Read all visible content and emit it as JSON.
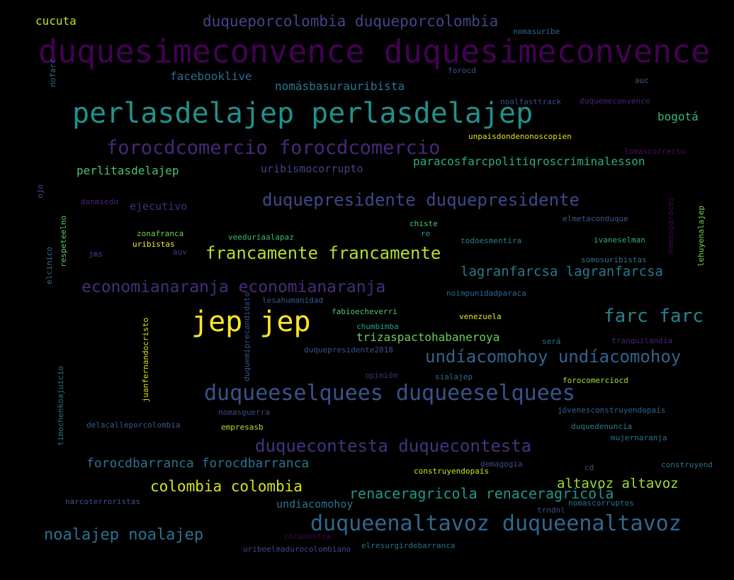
{
  "words": [
    {
      "text": "duquesimeconvence duquesimeconvence",
      "color": "#440154"
    },
    {
      "text": "perlasdelajep perlasdelajep",
      "color": "#21918c"
    },
    {
      "text": "jep jep",
      "color": "#fde725"
    },
    {
      "text": "duqueeselquees duqueeselquees",
      "color": "#3b528b"
    },
    {
      "text": "duqueenaltavoz duqueenaltavoz",
      "color": "#31688e"
    },
    {
      "text": "forocdcomercio forocdcomercio",
      "color": "#482878"
    },
    {
      "text": "duquepresidente duquepresidente",
      "color": "#3e4989"
    },
    {
      "text": "francamente francamente",
      "color": "#b5de2b"
    },
    {
      "text": "economianaranja economianaranja",
      "color": "#472d7b"
    },
    {
      "text": "farc farc",
      "color": "#26828e"
    },
    {
      "text": "undíacomohoy undíacomohoy",
      "color": "#33638d"
    },
    {
      "text": "duquecontesta duquecontesta",
      "color": "#46327e"
    },
    {
      "text": "duqueporcolombia duqueporcolombia",
      "color": "#404688"
    },
    {
      "text": "noalajep noalajep",
      "color": "#2d708e"
    },
    {
      "text": "colombia colombia",
      "color": "#d8e219"
    },
    {
      "text": "renaceragricola renaceragricola",
      "color": "#1f988b"
    },
    {
      "text": "lagranfarcsa lagranfarcsa",
      "color": "#2a788e"
    },
    {
      "text": "forocdbarranca forocdbarranca",
      "color": "#2c728e"
    },
    {
      "text": "altavoz altavoz",
      "color": "#a0da39"
    },
    {
      "text": "trizaspactohabaneroya",
      "color": "#6ccd5a"
    },
    {
      "text": "facebooklive",
      "color": "#31688e"
    },
    {
      "text": "nomásbasurauribista",
      "color": "#2a788e"
    },
    {
      "text": "paracosfarcpolitiqroscriminalesson",
      "color": "#29af7f"
    },
    {
      "text": "perlitasdelajep",
      "color": "#4ac16d"
    },
    {
      "text": "uribismocorrupto",
      "color": "#414487"
    },
    {
      "text": "bogotá",
      "color": "#35b779"
    },
    {
      "text": "cucuta",
      "color": "#c2df23"
    },
    {
      "text": "ejecutivo",
      "color": "#472f7d"
    },
    {
      "text": "undiacomohoy",
      "color": "#2c728e"
    },
    {
      "text": "nomasuribe",
      "color": "#33638d"
    },
    {
      "text": "forocd",
      "color": "#3b528b"
    },
    {
      "text": "auc",
      "color": "#355f8d"
    },
    {
      "text": "noalfasttrack",
      "color": "#3e4c8a"
    },
    {
      "text": "duquemeconvence",
      "color": "#482475"
    },
    {
      "text": "unpaisdondenonoscopien",
      "color": "#dde318"
    },
    {
      "text": "lomascorrecto",
      "color": "#471063"
    },
    {
      "text": "nofarc",
      "color": "#2c728e"
    },
    {
      "text": "ojo",
      "color": "#3b528b"
    },
    {
      "text": "danmiedo",
      "color": "#482475"
    },
    {
      "text": "zonafranca",
      "color": "#75d054"
    },
    {
      "text": "uribistas",
      "color": "#fde725"
    },
    {
      "text": "veeduríaalapaz",
      "color": "#3aba76"
    },
    {
      "text": "chiste",
      "color": "#4ec36b"
    },
    {
      "text": "re",
      "color": "#1fa088"
    },
    {
      "text": "todoesmentira",
      "color": "#26828e"
    },
    {
      "text": "ivaneselman",
      "color": "#2db27d"
    },
    {
      "text": "elmetaconduque",
      "color": "#39568c"
    },
    {
      "text": "nomasparacos",
      "color": "#46085c"
    },
    {
      "text": "lehuyenalajep",
      "color": "#7ad151"
    },
    {
      "text": "respeteelno",
      "color": "#5ec962"
    },
    {
      "text": "elcinico",
      "color": "#2e6e8e"
    },
    {
      "text": "jms",
      "color": "#3e4c8a"
    },
    {
      "text": "auv",
      "color": "#433e85"
    },
    {
      "text": "somosuribistas",
      "color": "#2c728e"
    },
    {
      "text": "noimpunidadparaca",
      "color": "#31688e"
    },
    {
      "text": "lesahumanidad",
      "color": "#38598c"
    },
    {
      "text": "duquemiprecandidato",
      "color": "#3b528b"
    },
    {
      "text": "fabioecheverri",
      "color": "#52c569"
    },
    {
      "text": "venezuela",
      "color": "#e5e419"
    },
    {
      "text": "chumbimba",
      "color": "#20a486"
    },
    {
      "text": "juanfernandocristo",
      "color": "#d8e219"
    },
    {
      "text": "timochenkoajuicio",
      "color": "#2c728e"
    },
    {
      "text": "duquepresidente2018",
      "color": "#3b528b"
    },
    {
      "text": "será",
      "color": "#2c728e"
    },
    {
      "text": "tranquilandia",
      "color": "#482576"
    },
    {
      "text": "opinión",
      "color": "#46337e"
    },
    {
      "text": "sialajep",
      "color": "#2e6e8e"
    },
    {
      "text": "forocomerciocd",
      "color": "#a8db34"
    },
    {
      "text": "nomasguerra",
      "color": "#3e4a89"
    },
    {
      "text": "jóvenesconstruyendopaís",
      "color": "#33638d"
    },
    {
      "text": "delacalleporcolombia",
      "color": "#365c8d"
    },
    {
      "text": "empresasb",
      "color": "#b2dd2d"
    },
    {
      "text": "duquedenuncia",
      "color": "#2a788e"
    },
    {
      "text": "mujernaranja",
      "color": "#2c728e"
    },
    {
      "text": "demagogia",
      "color": "#3e4c8a"
    },
    {
      "text": "construyendopaís",
      "color": "#d2e21b"
    },
    {
      "text": "cd",
      "color": "#3b528b"
    },
    {
      "text": "construyend",
      "color": "#2e6e8e"
    },
    {
      "text": "narcoterroristas",
      "color": "#3b528b"
    },
    {
      "text": "trndnl",
      "color": "#3e4c8a"
    },
    {
      "text": "nomascorruptos",
      "color": "#2c728e"
    },
    {
      "text": "cocanostra",
      "color": "#440154"
    },
    {
      "text": "uribeelmadurocolombiano",
      "color": "#3e4a89"
    },
    {
      "text": "elresurgirdebarranca",
      "color": "#2e6e8e"
    }
  ]
}
